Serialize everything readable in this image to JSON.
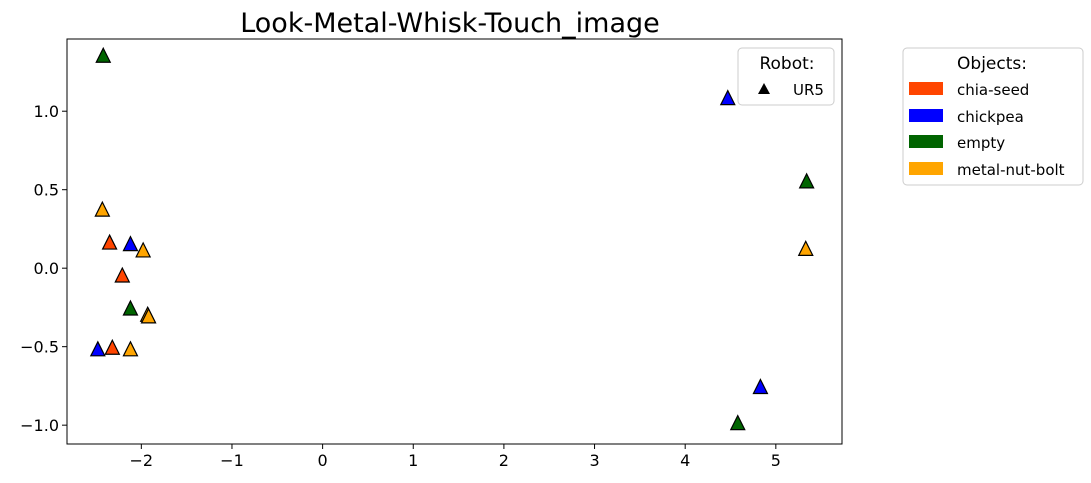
{
  "chart_data": {
    "type": "scatter",
    "title": "Look-Metal-Whisk-Touch_image",
    "xlabel": "",
    "ylabel": "",
    "xlim": [
      -2.82,
      5.73
    ],
    "ylim": [
      -1.12,
      1.46
    ],
    "xticks": [
      -2,
      -1,
      0,
      1,
      2,
      3,
      4,
      5
    ],
    "xtick_labels": [
      "−2",
      "−1",
      "0",
      "1",
      "2",
      "3",
      "4",
      "5"
    ],
    "yticks": [
      -1.0,
      -0.5,
      0.0,
      0.5,
      1.0
    ],
    "ytick_labels": [
      "−1.0",
      "−0.5",
      "0.0",
      "0.5",
      "1.0"
    ],
    "grid": false,
    "marker": "triangle",
    "series": [
      {
        "name": "chia-seed",
        "color": "#FF4500",
        "points": [
          [
            -2.35,
            0.16
          ],
          [
            -2.21,
            -0.05
          ],
          [
            -2.32,
            -0.51
          ]
        ]
      },
      {
        "name": "chickpea",
        "color": "#0000FF",
        "points": [
          [
            -2.12,
            0.15
          ],
          [
            -2.48,
            -0.52
          ],
          [
            4.47,
            1.08
          ],
          [
            4.83,
            -0.76
          ]
        ]
      },
      {
        "name": "empty",
        "color": "#006400",
        "points": [
          [
            -2.42,
            1.35
          ],
          [
            -2.12,
            -0.26
          ],
          [
            5.34,
            0.55
          ],
          [
            4.58,
            -0.99
          ]
        ]
      },
      {
        "name": "metal-nut-bolt",
        "color": "#FFA500",
        "points": [
          [
            -2.43,
            0.37
          ],
          [
            -1.98,
            0.11
          ],
          [
            -1.93,
            -0.3
          ],
          [
            -1.92,
            -0.31
          ],
          [
            -2.12,
            -0.52
          ],
          [
            5.33,
            0.12
          ]
        ]
      }
    ],
    "robot_legend": {
      "title": "Robot:",
      "entries": [
        {
          "label": "UR5",
          "marker": "triangle",
          "color": "#000000"
        }
      ],
      "placement": "top-right"
    },
    "objects_legend": {
      "title": "Objects:",
      "entries": [
        "chia-seed",
        "chickpea",
        "empty",
        "metal-nut-bolt"
      ],
      "placement": "outside-right"
    }
  }
}
